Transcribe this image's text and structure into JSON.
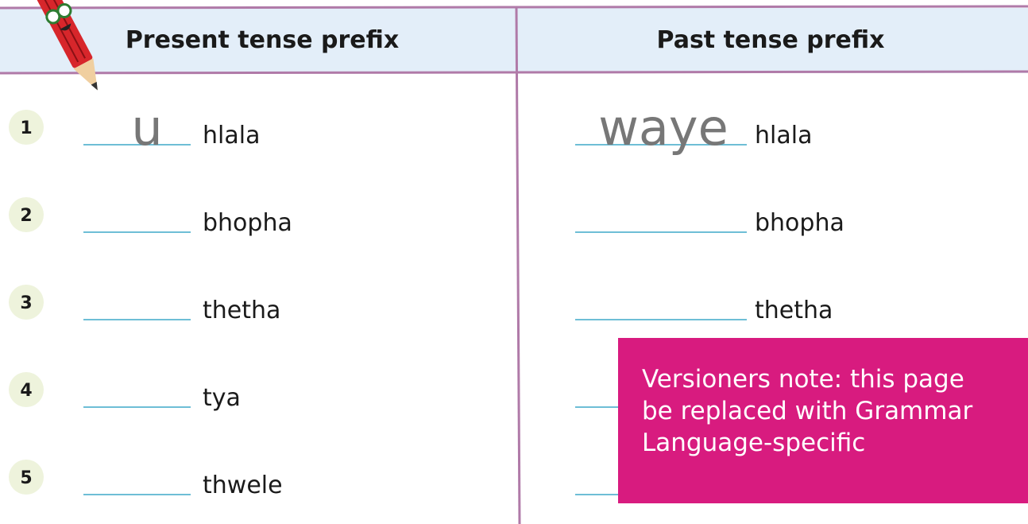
{
  "header": {
    "left": "Present tense prefix",
    "right": "Past tense prefix"
  },
  "rows": [
    {
      "number": "1",
      "left_answer": "u",
      "left_word": "hlala",
      "right_answer": "waye",
      "right_word": "hlala"
    },
    {
      "number": "2",
      "left_word": "bhopha",
      "right_word": "bhopha"
    },
    {
      "number": "3",
      "left_word": "thetha",
      "right_word": "thetha"
    },
    {
      "number": "4",
      "left_word": "tya"
    },
    {
      "number": "5",
      "left_word": "thwele"
    }
  ],
  "note": {
    "lines": [
      "Versioners note: this page",
      "be replaced with Grammar",
      "Language-specific"
    ]
  }
}
